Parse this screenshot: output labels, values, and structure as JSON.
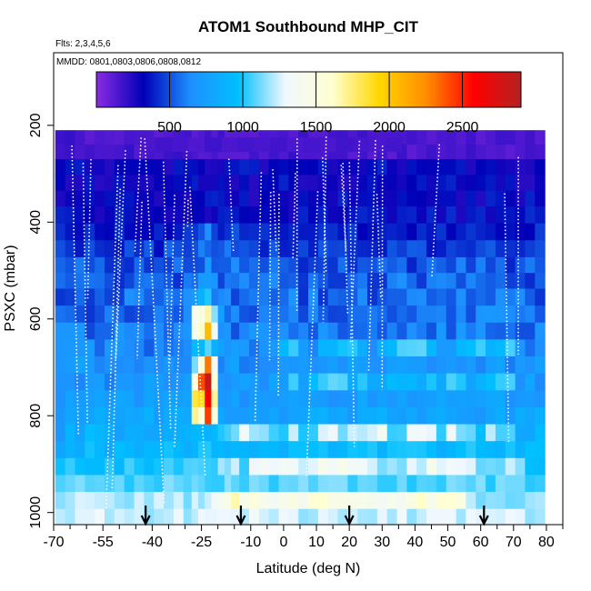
{
  "chart_data": {
    "type": "heatmap",
    "title": "ATOM1 Southbound MHP_CIT",
    "subtitle_flights": "Flts: 2,3,4,5,6",
    "subtitle_dates": "MMDD: 0801,0803,0806,0808,0812",
    "xlabel": "Latitude (deg N)",
    "ylabel": "PSXC (mbar)",
    "xlim": [
      -70,
      85
    ],
    "ylim": [
      1025,
      50
    ],
    "x_ticks": [
      -70,
      -55,
      -40,
      -25,
      -10,
      0,
      10,
      20,
      30,
      40,
      50,
      60,
      70,
      80
    ],
    "x_tick_labels": [
      "-70",
      "-55",
      "-40",
      "-25",
      "-10",
      "0",
      "10",
      "20",
      "30",
      "40",
      "50",
      "60",
      "70",
      "80"
    ],
    "y_ticks": [
      200,
      400,
      600,
      800,
      1000
    ],
    "y_tick_labels": [
      "200",
      "400",
      "600",
      "800",
      "1000"
    ],
    "colorbar": {
      "min": 0,
      "max": 2900,
      "ticks": [
        500,
        1000,
        1500,
        2000,
        2500
      ],
      "tick_labels": [
        "500",
        "1000",
        "1500",
        "2000",
        "2500"
      ],
      "colors": [
        "#8a2be2",
        "#0000b8",
        "#1e90ff",
        "#00bfff",
        "#f0f8ff",
        "#ffffd0",
        "#ffd700",
        "#ff8c00",
        "#ff0000",
        "#b22222"
      ]
    },
    "profile_latitudes": [
      -42,
      -13,
      20,
      61
    ],
    "pressure_bins": [
      225,
      255,
      285,
      320,
      350,
      385,
      420,
      455,
      490,
      520,
      555,
      590,
      625,
      660,
      695,
      730,
      765,
      800,
      835,
      870,
      905,
      940,
      975,
      1010
    ],
    "lat_bins": [
      -68,
      -65,
      -62,
      -59,
      -56,
      -53,
      -50,
      -47,
      -44,
      -41,
      -38,
      -35,
      -32,
      -29,
      -27,
      -25,
      -23,
      -21,
      -19,
      -17,
      -15,
      -12,
      -9,
      -6,
      -3,
      0,
      3,
      6,
      9,
      12,
      15,
      18,
      21,
      24,
      27,
      30,
      33,
      36,
      39,
      42,
      45,
      48,
      51,
      54,
      57,
      60,
      63,
      66,
      69,
      72,
      75,
      78
    ],
    "values": [
      [
        190,
        200,
        160,
        110,
        140,
        130,
        120,
        160,
        150,
        150,
        110,
        130,
        160,
        170,
        110,
        140,
        170,
        130,
        190,
        110,
        120,
        120,
        110,
        150,
        140,
        160,
        120,
        190,
        120,
        120,
        170,
        180,
        150,
        190,
        150,
        150,
        150,
        150,
        170,
        150,
        120,
        150,
        160,
        130,
        170,
        110,
        140,
        180,
        170,
        140,
        170,
        120
      ],
      [
        170,
        190,
        150,
        170,
        150,
        150,
        160,
        200,
        130,
        160,
        150,
        190,
        200,
        170,
        150,
        120,
        130,
        160,
        120,
        120,
        110,
        110,
        170,
        130,
        180,
        140,
        200,
        150,
        150,
        140,
        170,
        170,
        110,
        170,
        120,
        170,
        110,
        190,
        110,
        140,
        180,
        140,
        160,
        140,
        190,
        150,
        130,
        140,
        110,
        140,
        170,
        160
      ],
      [
        310,
        370,
        390,
        270,
        280,
        240,
        320,
        330,
        330,
        330,
        310,
        240,
        380,
        360,
        350,
        310,
        250,
        260,
        270,
        370,
        370,
        400,
        390,
        240,
        330,
        340,
        320,
        330,
        320,
        380,
        260,
        300,
        300,
        280,
        350,
        400,
        300,
        260,
        360,
        330,
        310,
        340,
        340,
        380,
        250,
        330,
        350,
        290,
        270,
        240,
        250,
        320
      ],
      [
        330,
        240,
        250,
        380,
        230,
        250,
        370,
        280,
        270,
        250,
        310,
        300,
        350,
        350,
        390,
        270,
        270,
        270,
        360,
        280,
        250,
        350,
        230,
        340,
        330,
        400,
        330,
        240,
        250,
        270,
        300,
        240,
        250,
        300,
        370,
        300,
        310,
        280,
        320,
        380,
        280,
        370,
        400,
        290,
        310,
        340,
        380,
        270,
        370,
        230,
        230,
        300
      ],
      [
        250,
        300,
        300,
        360,
        290,
        360,
        370,
        370,
        300,
        300,
        250,
        320,
        290,
        260,
        330,
        320,
        390,
        400,
        380,
        280,
        290,
        380,
        230,
        320,
        300,
        290,
        260,
        360,
        300,
        340,
        270,
        400,
        300,
        350,
        360,
        290,
        290,
        360,
        330,
        320,
        290,
        350,
        350,
        250,
        370,
        240,
        400,
        370,
        310,
        260,
        400,
        310
      ],
      [
        400,
        390,
        350,
        320,
        260,
        300,
        410,
        360,
        290,
        300,
        320,
        270,
        280,
        280,
        330,
        310,
        260,
        290,
        390,
        400,
        380,
        330,
        310,
        340,
        320,
        310,
        260,
        400,
        330,
        390,
        290,
        300,
        370,
        410,
        380,
        370,
        290,
        390,
        400,
        300,
        410,
        280,
        420,
        260,
        380,
        410,
        280,
        360,
        370,
        340,
        420,
        380
      ],
      [
        430,
        370,
        340,
        430,
        340,
        330,
        430,
        340,
        310,
        320,
        410,
        330,
        380,
        450,
        440,
        510,
        660,
        470,
        380,
        430,
        510,
        410,
        420,
        440,
        400,
        370,
        410,
        380,
        380,
        440,
        430,
        370,
        450,
        320,
        360,
        390,
        400,
        380,
        320,
        420,
        370,
        440,
        330,
        390,
        440,
        400,
        380,
        330,
        360,
        310,
        320,
        460
      ],
      [
        500,
        440,
        380,
        500,
        420,
        400,
        370,
        510,
        420,
        530,
        350,
        550,
        500,
        460,
        500,
        610,
        550,
        500,
        520,
        600,
        490,
        510,
        480,
        390,
        520,
        390,
        400,
        480,
        390,
        520,
        470,
        480,
        430,
        410,
        400,
        380,
        510,
        460,
        530,
        520,
        360,
        390,
        470,
        440,
        420,
        490,
        530,
        430,
        430,
        410,
        460,
        500
      ],
      [
        550,
        510,
        600,
        490,
        560,
        430,
        450,
        420,
        560,
        440,
        500,
        460,
        590,
        490,
        490,
        500,
        730,
        520,
        530,
        530,
        640,
        520,
        570,
        500,
        600,
        540,
        500,
        410,
        460,
        470,
        440,
        570,
        430,
        520,
        510,
        570,
        530,
        570,
        400,
        510,
        580,
        540,
        480,
        620,
        470,
        610,
        480,
        570,
        400,
        520,
        600,
        520
      ],
      [
        570,
        530,
        580,
        580,
        570,
        500,
        420,
        480,
        580,
        590,
        560,
        520,
        430,
        600,
        570,
        720,
        730,
        680,
        470,
        590,
        580,
        640,
        560,
        600,
        640,
        520,
        540,
        440,
        590,
        520,
        450,
        450,
        550,
        590,
        440,
        440,
        610,
        650,
        560,
        450,
        610,
        630,
        610,
        500,
        620,
        560,
        530,
        560,
        460,
        480,
        420,
        540
      ],
      [
        440,
        460,
        560,
        450,
        540,
        470,
        460,
        650,
        630,
        540,
        540,
        610,
        570,
        650,
        720,
        880,
        1010,
        600,
        630,
        660,
        470,
        560,
        600,
        600,
        540,
        560,
        680,
        430,
        670,
        440,
        560,
        540,
        530,
        640,
        440,
        510,
        540,
        540,
        630,
        640,
        530,
        560,
        520,
        660,
        520,
        560,
        530,
        650,
        600,
        640,
        530,
        440
      ],
      [
        580,
        560,
        500,
        440,
        500,
        610,
        550,
        470,
        490,
        510,
        610,
        560,
        520,
        640,
        1440,
        1500,
        1680,
        1150,
        740,
        560,
        640,
        510,
        490,
        620,
        600,
        580,
        630,
        480,
        630,
        530,
        470,
        480,
        570,
        570,
        600,
        560,
        500,
        560,
        520,
        610,
        610,
        620,
        510,
        630,
        500,
        680,
        700,
        680,
        640,
        590,
        620,
        520
      ],
      [
        690,
        690,
        680,
        480,
        550,
        550,
        700,
        630,
        640,
        570,
        640,
        550,
        640,
        680,
        1400,
        1620,
        2050,
        1350,
        660,
        700,
        500,
        620,
        700,
        690,
        620,
        650,
        570,
        620,
        520,
        700,
        620,
        520,
        550,
        560,
        600,
        520,
        610,
        530,
        650,
        600,
        510,
        700,
        510,
        710,
        600,
        680,
        550,
        540,
        580,
        500,
        500,
        680
      ],
      [
        680,
        700,
        700,
        720,
        550,
        700,
        700,
        640,
        620,
        530,
        640,
        580,
        610,
        640,
        930,
        920,
        1090,
        870,
        760,
        670,
        740,
        710,
        580,
        670,
        700,
        920,
        1040,
        730,
        620,
        890,
        890,
        990,
        1020,
        840,
        640,
        860,
        920,
        1070,
        1080,
        1090,
        910,
        710,
        720,
        920,
        950,
        1050,
        870,
        930,
        1060,
        680,
        570,
        650
      ],
      [
        680,
        720,
        780,
        710,
        620,
        660,
        640,
        660,
        620,
        670,
        640,
        690,
        630,
        630,
        1130,
        1560,
        2300,
        1350,
        610,
        720,
        780,
        590,
        610,
        640,
        640,
        710,
        690,
        720,
        660,
        690,
        750,
        650,
        780,
        740,
        660,
        650,
        750,
        760,
        730,
        720,
        640,
        680,
        710,
        650,
        710,
        620,
        740,
        780,
        600,
        710,
        660,
        760
      ],
      [
        670,
        670,
        620,
        710,
        740,
        600,
        700,
        700,
        650,
        780,
        730,
        650,
        680,
        750,
        1500,
        2400,
        2800,
        1600,
        690,
        650,
        710,
        770,
        730,
        640,
        780,
        730,
        1050,
        750,
        950,
        1040,
        1100,
        1080,
        830,
        1020,
        810,
        810,
        940,
        900,
        920,
        830,
        1000,
        810,
        1070,
        1010,
        780,
        870,
        960,
        1040,
        1060,
        660,
        790,
        630
      ],
      [
        650,
        770,
        720,
        740,
        780,
        710,
        800,
        780,
        660,
        780,
        740,
        790,
        760,
        770,
        1830,
        1900,
        2600,
        1700,
        700,
        700,
        780,
        640,
        730,
        720,
        700,
        740,
        770,
        750,
        750,
        720,
        660,
        670,
        680,
        820,
        680,
        760,
        700,
        780,
        690,
        730,
        740,
        800,
        750,
        760,
        750,
        760,
        800,
        810,
        650,
        700,
        730,
        670
      ],
      [
        690,
        790,
        750,
        780,
        850,
        790,
        770,
        800,
        790,
        880,
        720,
        820,
        850,
        800,
        1710,
        1600,
        2450,
        1500,
        800,
        710,
        710,
        720,
        760,
        730,
        790,
        700,
        770,
        790,
        860,
        870,
        780,
        800,
        700,
        840,
        850,
        880,
        760,
        750,
        810,
        720,
        810,
        840,
        780,
        750,
        730,
        690,
        780,
        860,
        700,
        850,
        790,
        860
      ],
      [
        690,
        890,
        770,
        950,
        910,
        860,
        760,
        850,
        850,
        790,
        790,
        850,
        860,
        880,
        920,
        930,
        870,
        930,
        1010,
        1050,
        1120,
        1330,
        1180,
        1160,
        1050,
        1010,
        1240,
        1000,
        1030,
        1260,
        1310,
        1120,
        1240,
        1210,
        1250,
        1400,
        1040,
        1050,
        1320,
        1320,
        1280,
        1030,
        1310,
        1130,
        1100,
        960,
        1220,
        1060,
        1070,
        800,
        790,
        940
      ],
      [
        790,
        880,
        830,
        990,
        910,
        810,
        960,
        920,
        850,
        920,
        900,
        990,
        920,
        840,
        900,
        1010,
        1010,
        900,
        920,
        880,
        920,
        900,
        870,
        930,
        920,
        860,
        980,
        980,
        960,
        990,
        870,
        910,
        990,
        980,
        1010,
        880,
        990,
        1000,
        1010,
        1000,
        950,
        850,
        900,
        970,
        1020,
        940,
        910,
        880,
        1000,
        880,
        970,
        960
      ],
      [
        980,
        1040,
        970,
        930,
        940,
        1020,
        920,
        1060,
        990,
        930,
        990,
        1060,
        1000,
        1070,
        1080,
        1060,
        1040,
        1030,
        1190,
        1140,
        1240,
        1030,
        1310,
        1350,
        1300,
        1360,
        1330,
        1230,
        1270,
        1420,
        1320,
        1430,
        1350,
        1330,
        1250,
        1130,
        1180,
        1130,
        1280,
        1210,
        1430,
        1270,
        1320,
        1290,
        1270,
        1100,
        1120,
        1100,
        1240,
        1150,
        960,
        930
      ],
      [
        1070,
        1100,
        1140,
        1080,
        1090,
        1060,
        1110,
        1010,
        1090,
        1050,
        1020,
        1150,
        1100,
        1070,
        1120,
        1090,
        1040,
        1030,
        1030,
        1160,
        1090,
        1040,
        1140,
        1110,
        1020,
        1110,
        1100,
        1150,
        1070,
        1140,
        1150,
        1150,
        1030,
        1110,
        1100,
        1030,
        1030,
        1120,
        1010,
        1080,
        1070,
        1030,
        1140,
        1120,
        1080,
        1150,
        1010,
        1140,
        1120,
        1120,
        1020,
        1040
      ],
      [
        1150,
        1190,
        1260,
        1250,
        1230,
        1220,
        1170,
        1140,
        1250,
        1170,
        1260,
        1180,
        1250,
        1120,
        1260,
        1170,
        1240,
        1320,
        1410,
        1440,
        1660,
        1440,
        1530,
        1420,
        1360,
        1440,
        1480,
        1400,
        1570,
        1600,
        1460,
        1460,
        1430,
        1430,
        1400,
        1370,
        1430,
        1390,
        1490,
        1620,
        1410,
        1560,
        1590,
        1500,
        1220,
        1120,
        1160,
        1150,
        1110,
        1120,
        1180,
        1200
      ],
      [
        1220,
        1190,
        1270,
        1270,
        1320,
        1190,
        1250,
        1220,
        1250,
        1160,
        1200,
        1220,
        1300,
        1160,
        1220,
        1300,
        1280,
        1280,
        1290,
        1290,
        1280,
        1210,
        1330,
        1250,
        1210,
        1310,
        1280,
        1160,
        1180,
        1280,
        1250,
        1190,
        1250,
        1190,
        1180,
        1280,
        1190,
        1320,
        1160,
        1230,
        1290,
        1300,
        1290,
        1180,
        1290,
        1270,
        1260,
        1250,
        1290,
        1280,
        1160,
        1190
      ]
    ]
  }
}
